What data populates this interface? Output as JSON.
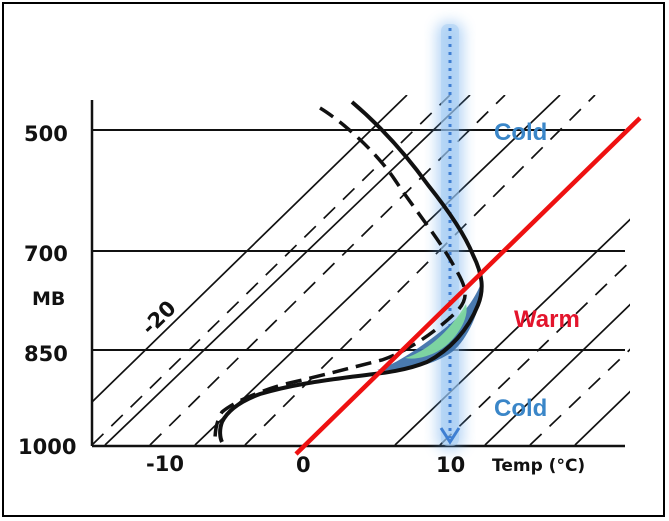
{
  "diagram": {
    "pressure_axis": {
      "unit_label": "MB",
      "levels": [
        "500",
        "700",
        "850",
        "1000"
      ]
    },
    "temperature_axis": {
      "title": "Temp (°C)",
      "ticks": [
        "-10",
        "0",
        "10"
      ]
    },
    "isotherm_label": "-20",
    "regions": {
      "upper": "Cold",
      "middle": "Warm",
      "lower": "Cold"
    },
    "colors": {
      "grid": "#111111",
      "freezing_line": "#ee1111",
      "cold_text": "#3a86c8",
      "warm_text": "#e3142c",
      "column": "#4a90e2",
      "melt_fill": "#3b6fa8",
      "melt_core": "#7fd8a0"
    }
  }
}
